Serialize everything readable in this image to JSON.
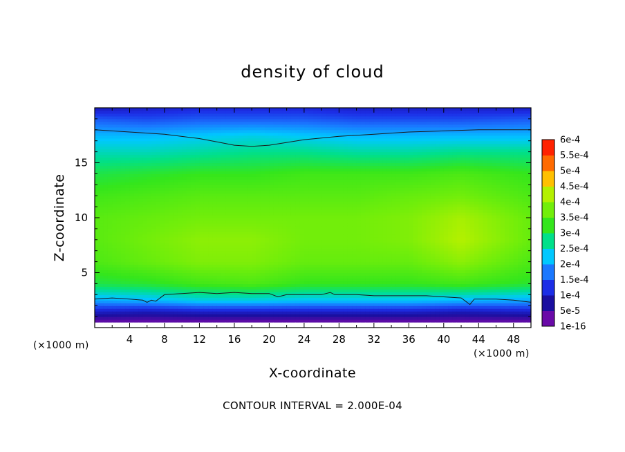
{
  "chart_data": {
    "type": "heatmap",
    "title": "density of cloud",
    "xlabel": "X-coordinate",
    "ylabel": "Z-coordinate",
    "x_unit": "(×1000 m)",
    "y_unit": "(×1000 m)",
    "xlim": [
      0,
      50
    ],
    "ylim": [
      0,
      20
    ],
    "x_ticks": [
      4,
      8,
      12,
      16,
      20,
      24,
      28,
      32,
      36,
      40,
      44,
      48
    ],
    "y_ticks": [
      5,
      10,
      15
    ],
    "colorbar": {
      "levels": [
        "1e-16",
        "5e-5",
        "1e-4",
        "1.5e-4",
        "2e-4",
        "2.5e-4",
        "3e-4",
        "3.5e-4",
        "4e-4",
        "4.5e-4",
        "5e-4",
        "5.5e-4",
        "6e-4"
      ],
      "colors": [
        "#6a0aa8",
        "#1a0fa0",
        "#1c2ee6",
        "#1a78ff",
        "#00c8ff",
        "#00e08a",
        "#34e61c",
        "#72ee0a",
        "#b4f000",
        "#ffc000",
        "#ff6a00",
        "#ff2200",
        "#ff8a8a"
      ]
    },
    "field": {
      "x": [
        0,
        6,
        12,
        18,
        24,
        30,
        36,
        42,
        50
      ],
      "z": [
        0.5,
        1.5,
        2.5,
        4,
        6,
        8,
        10,
        12,
        14,
        16,
        17.5,
        19,
        20
      ],
      "values": [
        [
          0.0,
          0.0,
          0.0,
          0.0,
          0.0,
          0.0,
          0.0,
          0.0,
          0.0
        ],
        [
          8e-05,
          7e-05,
          8e-05,
          8e-05,
          8e-05,
          8e-05,
          8e-05,
          7e-05,
          8e-05
        ],
        [
          0.00018,
          0.00019,
          0.00021,
          0.00021,
          0.0002,
          0.0002,
          0.0002,
          0.00019,
          0.00018
        ],
        [
          0.00028,
          0.00029,
          0.00031,
          0.00032,
          0.0003,
          0.0003,
          0.0003,
          0.00031,
          0.00029
        ],
        [
          0.00032,
          0.00034,
          0.00036,
          0.00036,
          0.00034,
          0.00034,
          0.00034,
          0.00037,
          0.00032
        ],
        [
          0.00033,
          0.00035,
          0.00037,
          0.00037,
          0.00035,
          0.00035,
          0.00036,
          0.0004,
          0.00034
        ],
        [
          0.00033,
          0.00034,
          0.00035,
          0.00035,
          0.00035,
          0.00035,
          0.00036,
          0.00039,
          0.00034
        ],
        [
          0.00031,
          0.00032,
          0.00033,
          0.00033,
          0.00033,
          0.00033,
          0.00034,
          0.00035,
          0.00032
        ],
        [
          0.00028,
          0.00029,
          0.0003,
          0.0003,
          0.00031,
          0.00031,
          0.00031,
          0.00032,
          0.0003
        ],
        [
          0.00023,
          0.00023,
          0.00024,
          0.00025,
          0.00025,
          0.00024,
          0.00024,
          0.00025,
          0.00025
        ],
        [
          0.00019,
          0.00019,
          0.0002,
          0.00021,
          0.0002,
          0.00019,
          0.00019,
          0.00019,
          0.00019
        ],
        [
          0.00013,
          0.00012,
          0.00013,
          0.00013,
          0.00013,
          0.00012,
          0.00012,
          0.00012,
          0.00013
        ],
        [
          7e-05,
          8e-05,
          9e-05,
          9e-05,
          9e-05,
          8e-05,
          8e-05,
          8e-05,
          8e-05
        ]
      ]
    },
    "contour_interval_text": "CONTOUR INTERVAL = 2.000E-04",
    "contour_lines": [
      {
        "name": "upper",
        "x": [
          0,
          4,
          8,
          12,
          14,
          16,
          18,
          20,
          24,
          28,
          32,
          36,
          40,
          44,
          48,
          50
        ],
        "z": [
          18.0,
          17.8,
          17.6,
          17.2,
          16.9,
          16.6,
          16.5,
          16.6,
          17.1,
          17.4,
          17.6,
          17.8,
          17.9,
          18.0,
          18.0,
          18.0
        ]
      },
      {
        "name": "lower",
        "x": [
          0,
          2,
          4,
          5.5,
          6,
          6.5,
          7,
          8,
          10,
          12,
          14,
          16,
          18,
          20,
          21,
          22,
          24,
          26,
          27,
          27.5,
          28,
          30,
          32,
          34,
          36,
          38,
          40,
          42,
          42.5,
          43,
          43.5,
          44,
          46,
          48,
          50
        ],
        "z": [
          2.6,
          2.7,
          2.6,
          2.5,
          2.3,
          2.5,
          2.4,
          3.0,
          3.1,
          3.2,
          3.1,
          3.2,
          3.1,
          3.1,
          2.8,
          3.0,
          3.0,
          3.0,
          3.2,
          3.0,
          3.0,
          3.0,
          2.9,
          2.9,
          2.9,
          2.9,
          2.8,
          2.7,
          2.4,
          2.1,
          2.6,
          2.6,
          2.6,
          2.5,
          2.3
        ]
      }
    ]
  }
}
